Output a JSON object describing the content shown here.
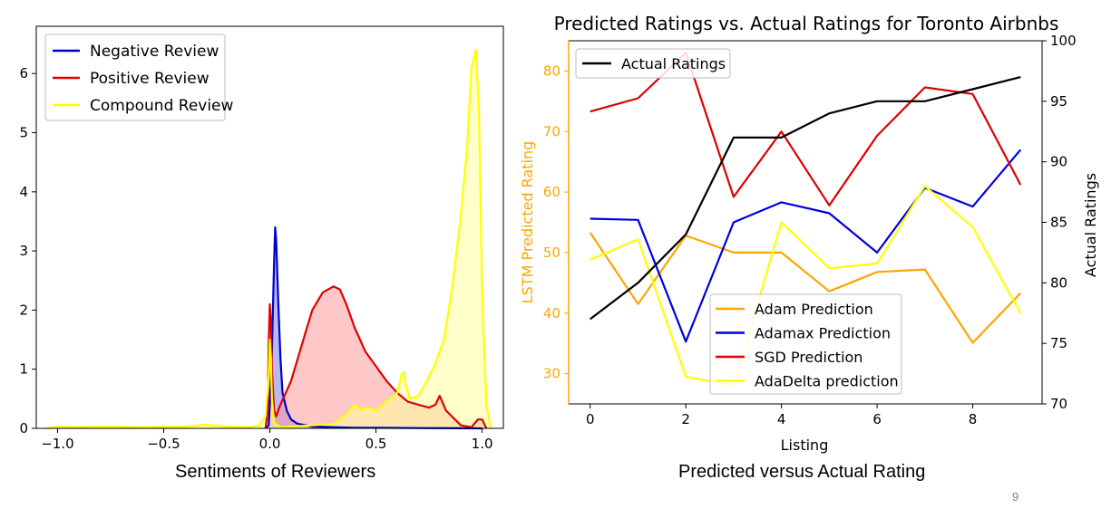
{
  "slide": {
    "caption_left": "Sentiments of Reviewers",
    "caption_right": "Predicted versus Actual Rating",
    "page_number": "9"
  },
  "chart_data": [
    {
      "type": "area",
      "title": "",
      "xlabel": "",
      "ylabel": "",
      "xlim": [
        -1.1,
        1.1
      ],
      "ylim": [
        0,
        6.8
      ],
      "xticks": [
        -1.0,
        -0.5,
        0.0,
        0.5,
        1.0
      ],
      "xtick_labels": [
        "−1.0",
        "−0.5",
        "0.0",
        "0.5",
        "1.0"
      ],
      "yticks": [
        0,
        1,
        2,
        3,
        4,
        5,
        6
      ],
      "ytick_labels": [
        "0",
        "1",
        "2",
        "3",
        "4",
        "5",
        "6"
      ],
      "grid": false,
      "legend": "top-left",
      "series": [
        {
          "name": "Negative Review",
          "color": "#0000cc",
          "fill": "#7f7fe6",
          "x": [
            -0.02,
            -0.005,
            0.0,
            0.01,
            0.02,
            0.025,
            0.03,
            0.04,
            0.05,
            0.06,
            0.08,
            0.1,
            0.13,
            0.2,
            0.3,
            0.4,
            0.5,
            0.7,
            1.0
          ],
          "y": [
            0,
            0.05,
            0.4,
            1.3,
            2.8,
            3.4,
            3.2,
            2.1,
            1.2,
            0.6,
            0.3,
            0.15,
            0.08,
            0.03,
            0.02,
            0.01,
            0.01,
            0.005,
            0
          ]
        },
        {
          "name": "Positive Review",
          "color": "#e00000",
          "fill": "#ff9a9a",
          "x": [
            -0.02,
            -0.01,
            -0.005,
            0.0,
            0.005,
            0.01,
            0.02,
            0.03,
            0.05,
            0.1,
            0.15,
            0.2,
            0.25,
            0.3,
            0.33,
            0.36,
            0.4,
            0.45,
            0.5,
            0.55,
            0.6,
            0.65,
            0.7,
            0.75,
            0.78,
            0.8,
            0.83,
            0.9,
            0.95,
            0.98,
            1.0,
            1.02
          ],
          "y": [
            0,
            0.3,
            1.5,
            2.1,
            1.8,
            1.0,
            0.3,
            0.2,
            0.4,
            0.8,
            1.4,
            2.0,
            2.3,
            2.4,
            2.35,
            2.1,
            1.7,
            1.3,
            1.05,
            0.8,
            0.6,
            0.45,
            0.4,
            0.35,
            0.4,
            0.55,
            0.3,
            0.05,
            0.02,
            0.15,
            0.15,
            0
          ]
        },
        {
          "name": "Compound Review",
          "color": "#ffff00",
          "fill": "#ffff9e",
          "x": [
            -1.05,
            -1.0,
            -0.9,
            -0.8,
            -0.6,
            -0.4,
            -0.3,
            -0.2,
            -0.1,
            -0.05,
            -0.02,
            -0.005,
            0.0,
            0.005,
            0.01,
            0.02,
            0.05,
            0.1,
            0.2,
            0.3,
            0.35,
            0.4,
            0.43,
            0.45,
            0.5,
            0.55,
            0.6,
            0.62,
            0.63,
            0.64,
            0.66,
            0.7,
            0.74,
            0.78,
            0.82,
            0.86,
            0.9,
            0.93,
            0.95,
            0.97,
            0.985,
            1.0,
            1.02,
            1.04
          ],
          "y": [
            0,
            0.03,
            0.02,
            0.03,
            0.02,
            0.03,
            0.06,
            0.03,
            0.02,
            0.05,
            0.2,
            0.9,
            1.5,
            1.2,
            0.5,
            0.1,
            0.02,
            0.03,
            0.05,
            0.08,
            0.2,
            0.4,
            0.3,
            0.35,
            0.3,
            0.45,
            0.6,
            0.9,
            0.95,
            0.75,
            0.5,
            0.55,
            0.8,
            1.1,
            1.5,
            2.4,
            3.6,
            4.8,
            6.1,
            6.4,
            5.4,
            2.3,
            0.4,
            0
          ]
        }
      ]
    },
    {
      "type": "line",
      "title": "Predicted Ratings vs. Actual Ratings for Toronto Airbnbs",
      "xlabel": "Listing",
      "ylabel": "LSTM Predicted Rating",
      "ylabel_color": "#ffa500",
      "y2label": "Actual Ratings",
      "x": [
        0,
        1,
        2,
        3,
        4,
        5,
        6,
        7,
        8,
        9
      ],
      "xlim": [
        -0.45,
        9.45
      ],
      "xticks": [
        0,
        2,
        4,
        6,
        8
      ],
      "ylim": [
        25,
        85
      ],
      "yticks": [
        30,
        40,
        50,
        60,
        70,
        80
      ],
      "y2lim": [
        70,
        100
      ],
      "y2ticks": [
        70,
        75,
        80,
        85,
        90,
        95,
        100
      ],
      "grid": false,
      "legend_left": "top-left",
      "legend_right": "lower-center",
      "series": [
        {
          "name": "Adam Prediction",
          "color": "#ffa500",
          "axis": "left",
          "values": [
            53.3,
            41.5,
            52.8,
            50.0,
            50.0,
            43.6,
            46.8,
            47.2,
            35.1,
            43.3
          ]
        },
        {
          "name": "Adamax Prediction",
          "color": "#0000dd",
          "axis": "left",
          "values": [
            55.6,
            55.4,
            35.3,
            55.0,
            58.3,
            56.5,
            50.0,
            60.7,
            57.6,
            67.0
          ]
        },
        {
          "name": "SGD Prediction",
          "color": "#dd0000",
          "axis": "left",
          "values": [
            73.3,
            75.5,
            83.0,
            59.2,
            70.0,
            57.8,
            69.3,
            77.3,
            76.2,
            61.2
          ]
        },
        {
          "name": "AdaDelta prediction",
          "color": "#ffff00",
          "axis": "left",
          "values": [
            48.8,
            52.2,
            29.5,
            28.0,
            55.0,
            47.4,
            48.2,
            61.0,
            54.2,
            40.0
          ]
        },
        {
          "name": "Actual Ratings",
          "color": "#000000",
          "axis": "right",
          "values": [
            77,
            80,
            84,
            92,
            92,
            94,
            95,
            95,
            96,
            97
          ]
        }
      ]
    }
  ]
}
